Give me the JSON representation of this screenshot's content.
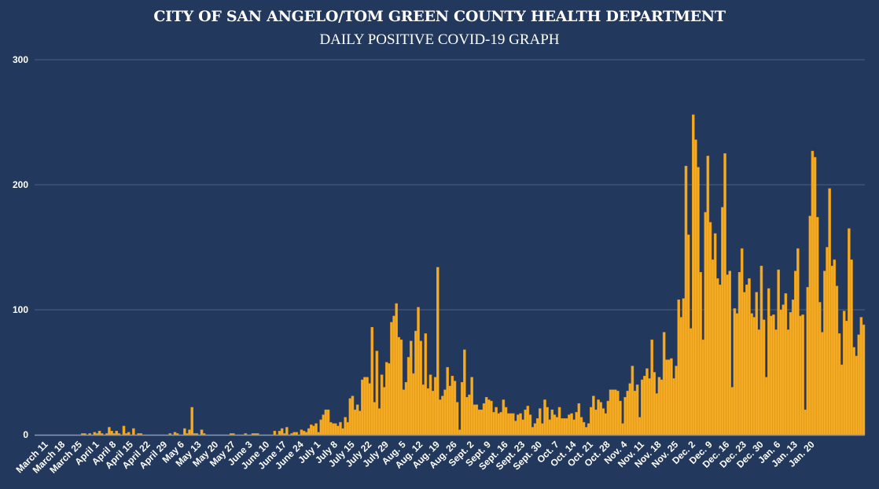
{
  "chart_data": {
    "type": "bar",
    "title": "CITY OF SAN ANGELO/TOM GREEN COUNTY HEALTH DEPARTMENT",
    "subtitle": "DAILY POSITIVE COVID-19 GRAPH",
    "xlabel": "",
    "ylabel": "",
    "ylim": [
      0,
      300
    ],
    "yticks": [
      0,
      100,
      200,
      300
    ],
    "grid": true,
    "legend": "none",
    "colors": {
      "background": "#22385c",
      "bar": "#f5ac25",
      "bar_edge": "#d98f12",
      "grid": "#4d6182",
      "axis": "#8a9ab3",
      "text": "#ffffff"
    },
    "start_date": "March 11",
    "end_date": "Jan. 20",
    "tick_interval_days": 7,
    "xtick_labels": [
      "March 11",
      "March 18",
      "March 25",
      "April 1",
      "April 8",
      "April 15",
      "April 22",
      "April 29",
      "May 6",
      "May 13",
      "May 20",
      "May 27",
      "June 3",
      "June 10",
      "June 17",
      "June 24",
      "July 1",
      "July 8",
      "July 15",
      "July 22",
      "July 29",
      "Aug. 5",
      "Aug. 12",
      "Aug. 19",
      "Aug. 26",
      "Sept. 2",
      "Sept. 9",
      "Sept. 16",
      "Sept. 23",
      "Sept. 30",
      "Oct. 7",
      "Oct. 14",
      "Oct. 21",
      "Oct. 28",
      "Nov. 4",
      "Nov. 11",
      "Nov. 18",
      "Nov. 25",
      "Dec. 2",
      "Dec. 9",
      "Dec. 16",
      "Dec. 23",
      "Dec. 30",
      "Jan. 6",
      "Jan. 13",
      "Jan. 20"
    ],
    "values": [
      0,
      0,
      0,
      0,
      0,
      0,
      0,
      0,
      0,
      0,
      0,
      0,
      0,
      0,
      1,
      1,
      0,
      1,
      0,
      2,
      1,
      3,
      1,
      0,
      1,
      6,
      3,
      1,
      3,
      1,
      0,
      7,
      1,
      2,
      0,
      5,
      0,
      1,
      1,
      0,
      0,
      0,
      0,
      0,
      0,
      0,
      0,
      0,
      0,
      0,
      1,
      0,
      2,
      1,
      0,
      0,
      5,
      1,
      4,
      22,
      1,
      1,
      0,
      4,
      1,
      0,
      0,
      0,
      0,
      0,
      0,
      0,
      0,
      0,
      0,
      1,
      1,
      0,
      0,
      0,
      0,
      1,
      0,
      0,
      1,
      1,
      1,
      0,
      0,
      0,
      0,
      0,
      0,
      3,
      0,
      3,
      5,
      1,
      6,
      0,
      1,
      2,
      2,
      0,
      4,
      3,
      2,
      5,
      8,
      7,
      9,
      2,
      12,
      16,
      20,
      20,
      10,
      9,
      9,
      7,
      10,
      5,
      14,
      10,
      29,
      31,
      20,
      24,
      19,
      44,
      46,
      46,
      41,
      86,
      26,
      67,
      21,
      48,
      38,
      58,
      57,
      90,
      95,
      105,
      78,
      76,
      36,
      42,
      62,
      75,
      49,
      83,
      102,
      75,
      40,
      81,
      37,
      48,
      35,
      46,
      134,
      28,
      31,
      36,
      54,
      39,
      47,
      43,
      26,
      4,
      42,
      68,
      30,
      32,
      46,
      24,
      24,
      20,
      20,
      25,
      30,
      28,
      27,
      18,
      22,
      17,
      18,
      28,
      22,
      17,
      17,
      17,
      11,
      16,
      17,
      12,
      20,
      23,
      16,
      6,
      9,
      13,
      21,
      9,
      28,
      22,
      12,
      20,
      16,
      14,
      22,
      13,
      13,
      13,
      16,
      17,
      12,
      18,
      25,
      14,
      10,
      6,
      9,
      22,
      31,
      20,
      28,
      26,
      21,
      17,
      27,
      36,
      36,
      36,
      35,
      27,
      9,
      30,
      35,
      41,
      55,
      35,
      40,
      14,
      44,
      47,
      53,
      45,
      76,
      50,
      33,
      46,
      44,
      82,
      60,
      60,
      61,
      45,
      55,
      108,
      94,
      109,
      215,
      160,
      85,
      256,
      236,
      214,
      130,
      76,
      178,
      223,
      170,
      140,
      161,
      125,
      120,
      182,
      225,
      128,
      131,
      38,
      101,
      97,
      130,
      149,
      114,
      120,
      125,
      97,
      94,
      114,
      84,
      135,
      92,
      46,
      117,
      95,
      96,
      84,
      132,
      100,
      104,
      113,
      84,
      98,
      108,
      131,
      149,
      95,
      96,
      20,
      118,
      175,
      227,
      222,
      174,
      106,
      82,
      131,
      150,
      197,
      135,
      140,
      119,
      81,
      56,
      99,
      91,
      165,
      140,
      70,
      63,
      80,
      94,
      88
    ]
  }
}
